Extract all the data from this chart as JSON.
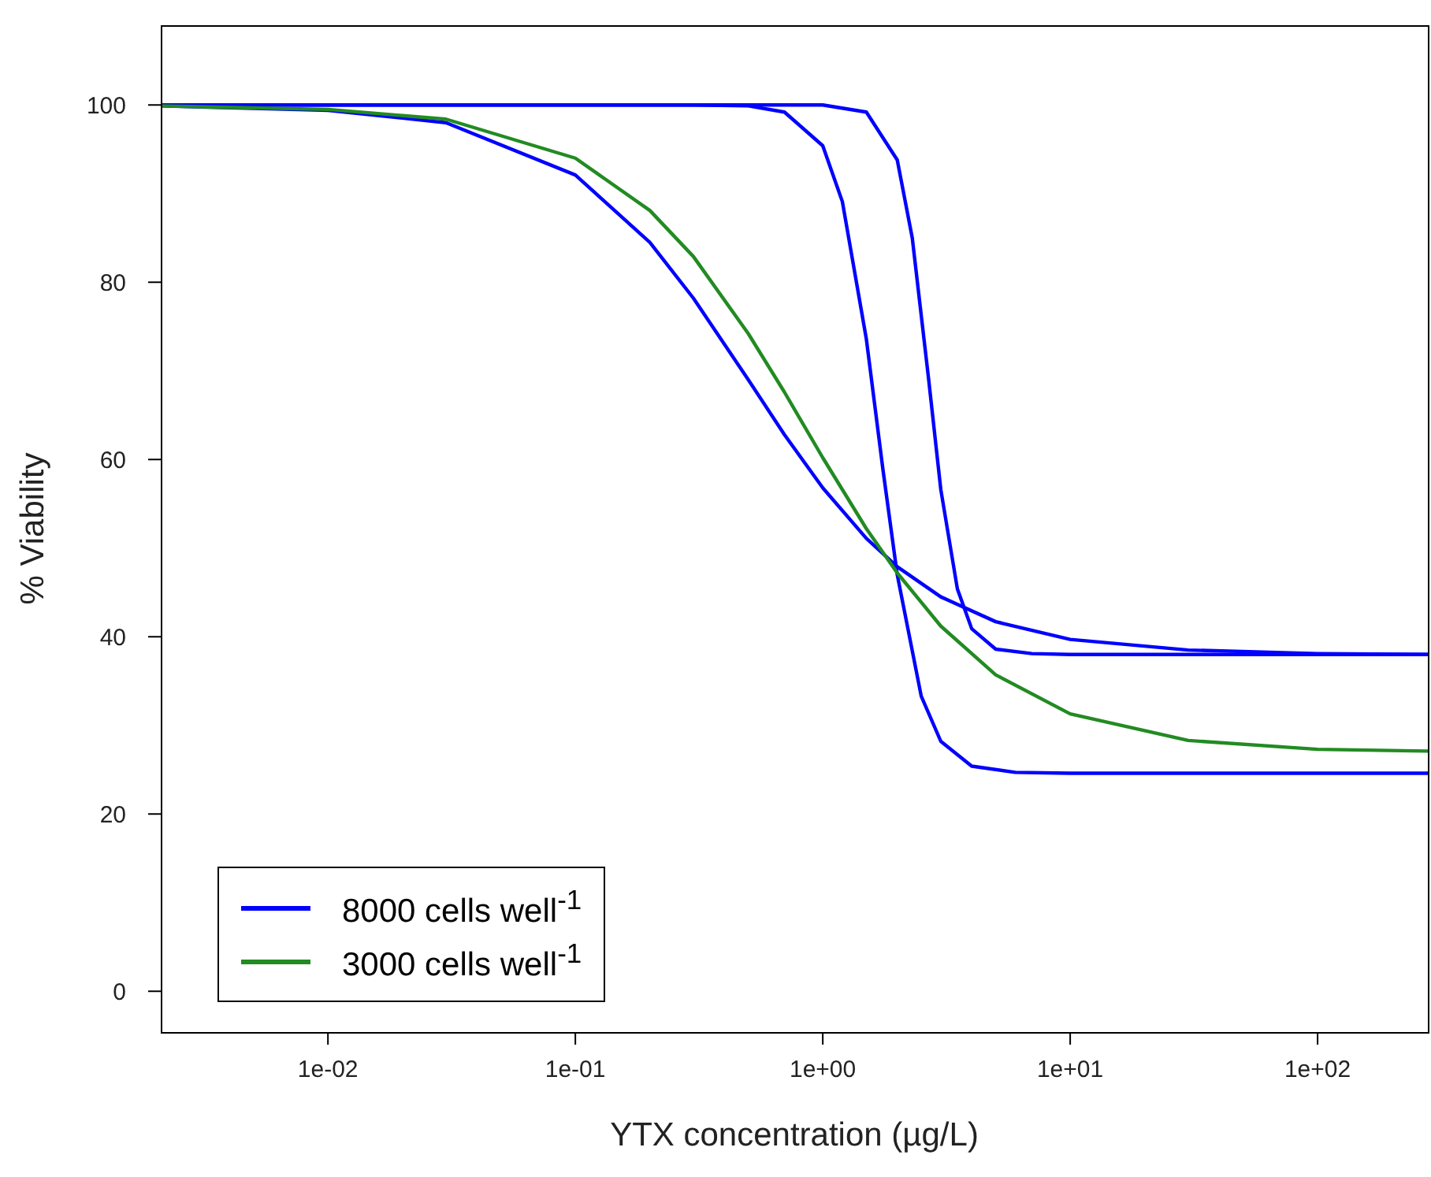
{
  "chart_data": {
    "type": "line",
    "xlabel": "YTX concentration (µg/L)",
    "ylabel": "% Viability",
    "log": "x",
    "grid": false,
    "legend": "bottom left",
    "marker": "none",
    "line_style": "solid",
    "xlim": [
      0.00211,
      279
    ],
    "xticks": [
      {
        "value": 0.01,
        "label": "1e-02"
      },
      {
        "value": 0.1,
        "label": "1e-01"
      },
      {
        "value": 1,
        "label": "1e+00"
      },
      {
        "value": 10,
        "label": "1e+01"
      },
      {
        "value": 100,
        "label": "1e+02"
      }
    ],
    "ylim": [
      -4.6,
      109
    ],
    "yticks": [
      0,
      20,
      40,
      60,
      80,
      100
    ],
    "series": [
      {
        "name": "8000 cells well$^{-1}$",
        "color": "#0000ff",
        "x": [
          0.00211,
          0.01,
          0.03,
          0.1,
          0.2,
          0.3,
          0.5,
          0.7,
          1,
          1.5,
          2,
          3,
          5,
          10,
          30,
          100,
          279
        ],
        "values": [
          99.9,
          99.4,
          98,
          92.1,
          84.5,
          78.2,
          69,
          62.8,
          56.8,
          51.1,
          47.9,
          44.5,
          41.7,
          39.7,
          38.5,
          38.1,
          38
        ]
      },
      {
        "color": "#0000ff",
        "x": [
          0.00211,
          0.3,
          0.5,
          0.7,
          1,
          1.2,
          1.5,
          1.75,
          2,
          2.5,
          3,
          4,
          6,
          10,
          100,
          279
        ],
        "values": [
          100,
          100,
          99.9,
          99.2,
          95.4,
          89.1,
          73.6,
          58.9,
          47,
          33.3,
          28.2,
          25.4,
          24.7,
          24.6,
          24.6,
          24.6
        ]
      },
      {
        "color": "#0000ff",
        "x": [
          0.00211,
          0.5,
          1,
          1.5,
          2,
          2.3,
          2.68,
          3,
          3.5,
          4,
          5,
          7,
          10,
          100,
          279
        ],
        "values": [
          100,
          100,
          100,
          99.2,
          93.8,
          85,
          69,
          56.6,
          45.4,
          40.9,
          38.6,
          38.1,
          38,
          38,
          38
        ]
      },
      {
        "name": "3000 cells well$^{-1}$",
        "color": "#228b22",
        "x": [
          0.00211,
          0.01,
          0.03,
          0.1,
          0.2,
          0.3,
          0.5,
          0.7,
          1,
          1.5,
          2,
          3,
          5,
          10,
          30,
          100,
          279
        ],
        "values": [
          99.9,
          99.5,
          98.4,
          94,
          88.1,
          82.9,
          74.2,
          67.6,
          60.2,
          52.2,
          47.2,
          41.2,
          35.7,
          31.3,
          28.3,
          27.3,
          27.1
        ]
      }
    ]
  }
}
